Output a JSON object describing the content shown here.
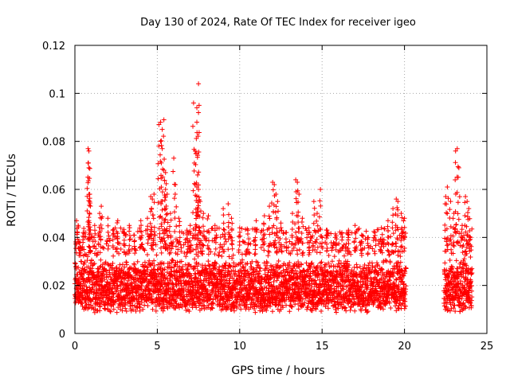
{
  "chart_data": {
    "type": "scatter",
    "title": "Day 130 of 2024, Rate Of TEC Index for receiver igeo",
    "xlabel": "GPS time / hours",
    "ylabel": "ROTI / TECUs",
    "xlim": [
      0,
      25
    ],
    "ylim": [
      0,
      0.12
    ],
    "xticks": [
      "0",
      "5",
      "10",
      "15",
      "20",
      "25"
    ],
    "yticks": [
      "0",
      "0.02",
      "0.04",
      "0.06",
      "0.08",
      "0.1",
      "0.12"
    ],
    "grid": true,
    "marker": "plus",
    "color": "#ff0000",
    "coverage": [
      [
        0,
        20.1
      ],
      [
        22.4,
        24.1
      ]
    ],
    "baseline": {
      "low": 0.008,
      "high": 0.032
    },
    "points": [
      [
        0.1,
        0.047
      ],
      [
        0.2,
        0.045
      ],
      [
        0.3,
        0.038
      ],
      [
        0.5,
        0.042
      ],
      [
        0.8,
        0.077
      ],
      [
        0.85,
        0.076
      ],
      [
        0.8,
        0.071
      ],
      [
        0.85,
        0.069
      ],
      [
        0.9,
        0.058
      ],
      [
        0.9,
        0.055
      ],
      [
        1.2,
        0.045
      ],
      [
        1.5,
        0.05
      ],
      [
        1.6,
        0.053
      ],
      [
        2.0,
        0.048
      ],
      [
        2.3,
        0.043
      ],
      [
        2.6,
        0.047
      ],
      [
        3.0,
        0.042
      ],
      [
        3.3,
        0.045
      ],
      [
        3.6,
        0.041
      ],
      [
        4.0,
        0.047
      ],
      [
        4.4,
        0.048
      ],
      [
        4.6,
        0.057
      ],
      [
        4.7,
        0.056
      ],
      [
        4.8,
        0.058
      ],
      [
        5.1,
        0.087
      ],
      [
        5.2,
        0.088
      ],
      [
        5.3,
        0.085
      ],
      [
        5.4,
        0.089
      ],
      [
        5.2,
        0.08
      ],
      [
        5.3,
        0.077
      ],
      [
        5.4,
        0.068
      ],
      [
        5.5,
        0.067
      ],
      [
        5.5,
        0.06
      ],
      [
        5.6,
        0.058
      ],
      [
        5.8,
        0.05
      ],
      [
        6.0,
        0.073
      ],
      [
        6.1,
        0.062
      ],
      [
        6.3,
        0.048
      ],
      [
        6.8,
        0.043
      ],
      [
        7.0,
        0.045
      ],
      [
        7.2,
        0.096
      ],
      [
        7.4,
        0.094
      ],
      [
        7.5,
        0.104
      ],
      [
        7.5,
        0.092
      ],
      [
        7.4,
        0.088
      ],
      [
        7.3,
        0.076
      ],
      [
        7.35,
        0.075
      ],
      [
        7.4,
        0.061
      ],
      [
        7.5,
        0.06
      ],
      [
        7.6,
        0.055
      ],
      [
        7.8,
        0.05
      ],
      [
        8.1,
        0.049
      ],
      [
        8.5,
        0.045
      ],
      [
        9.0,
        0.052
      ],
      [
        9.3,
        0.054
      ],
      [
        9.5,
        0.048
      ],
      [
        10.0,
        0.044
      ],
      [
        10.5,
        0.043
      ],
      [
        11.0,
        0.047
      ],
      [
        11.5,
        0.049
      ],
      [
        11.8,
        0.053
      ],
      [
        12.0,
        0.063
      ],
      [
        12.1,
        0.062
      ],
      [
        12.2,
        0.058
      ],
      [
        12.3,
        0.055
      ],
      [
        12.5,
        0.046
      ],
      [
        12.8,
        0.042
      ],
      [
        13.2,
        0.05
      ],
      [
        13.4,
        0.064
      ],
      [
        13.5,
        0.063
      ],
      [
        13.6,
        0.058
      ],
      [
        13.8,
        0.048
      ],
      [
        14.2,
        0.044
      ],
      [
        14.5,
        0.055
      ],
      [
        14.7,
        0.05
      ],
      [
        14.9,
        0.06
      ],
      [
        15.3,
        0.043
      ],
      [
        15.8,
        0.04
      ],
      [
        16.2,
        0.042
      ],
      [
        16.6,
        0.043
      ],
      [
        17.0,
        0.045
      ],
      [
        17.4,
        0.041
      ],
      [
        17.8,
        0.04
      ],
      [
        18.2,
        0.042
      ],
      [
        18.6,
        0.044
      ],
      [
        19.0,
        0.047
      ],
      [
        19.3,
        0.052
      ],
      [
        19.5,
        0.056
      ],
      [
        19.6,
        0.055
      ],
      [
        19.8,
        0.05
      ],
      [
        20.0,
        0.048
      ],
      [
        22.5,
        0.057
      ],
      [
        22.6,
        0.061
      ],
      [
        22.8,
        0.055
      ],
      [
        23.0,
        0.05
      ],
      [
        23.1,
        0.076
      ],
      [
        23.2,
        0.077
      ],
      [
        23.3,
        0.069
      ],
      [
        23.5,
        0.045
      ],
      [
        23.7,
        0.057
      ],
      [
        23.8,
        0.055
      ],
      [
        23.9,
        0.052
      ],
      [
        24.0,
        0.04
      ]
    ]
  }
}
